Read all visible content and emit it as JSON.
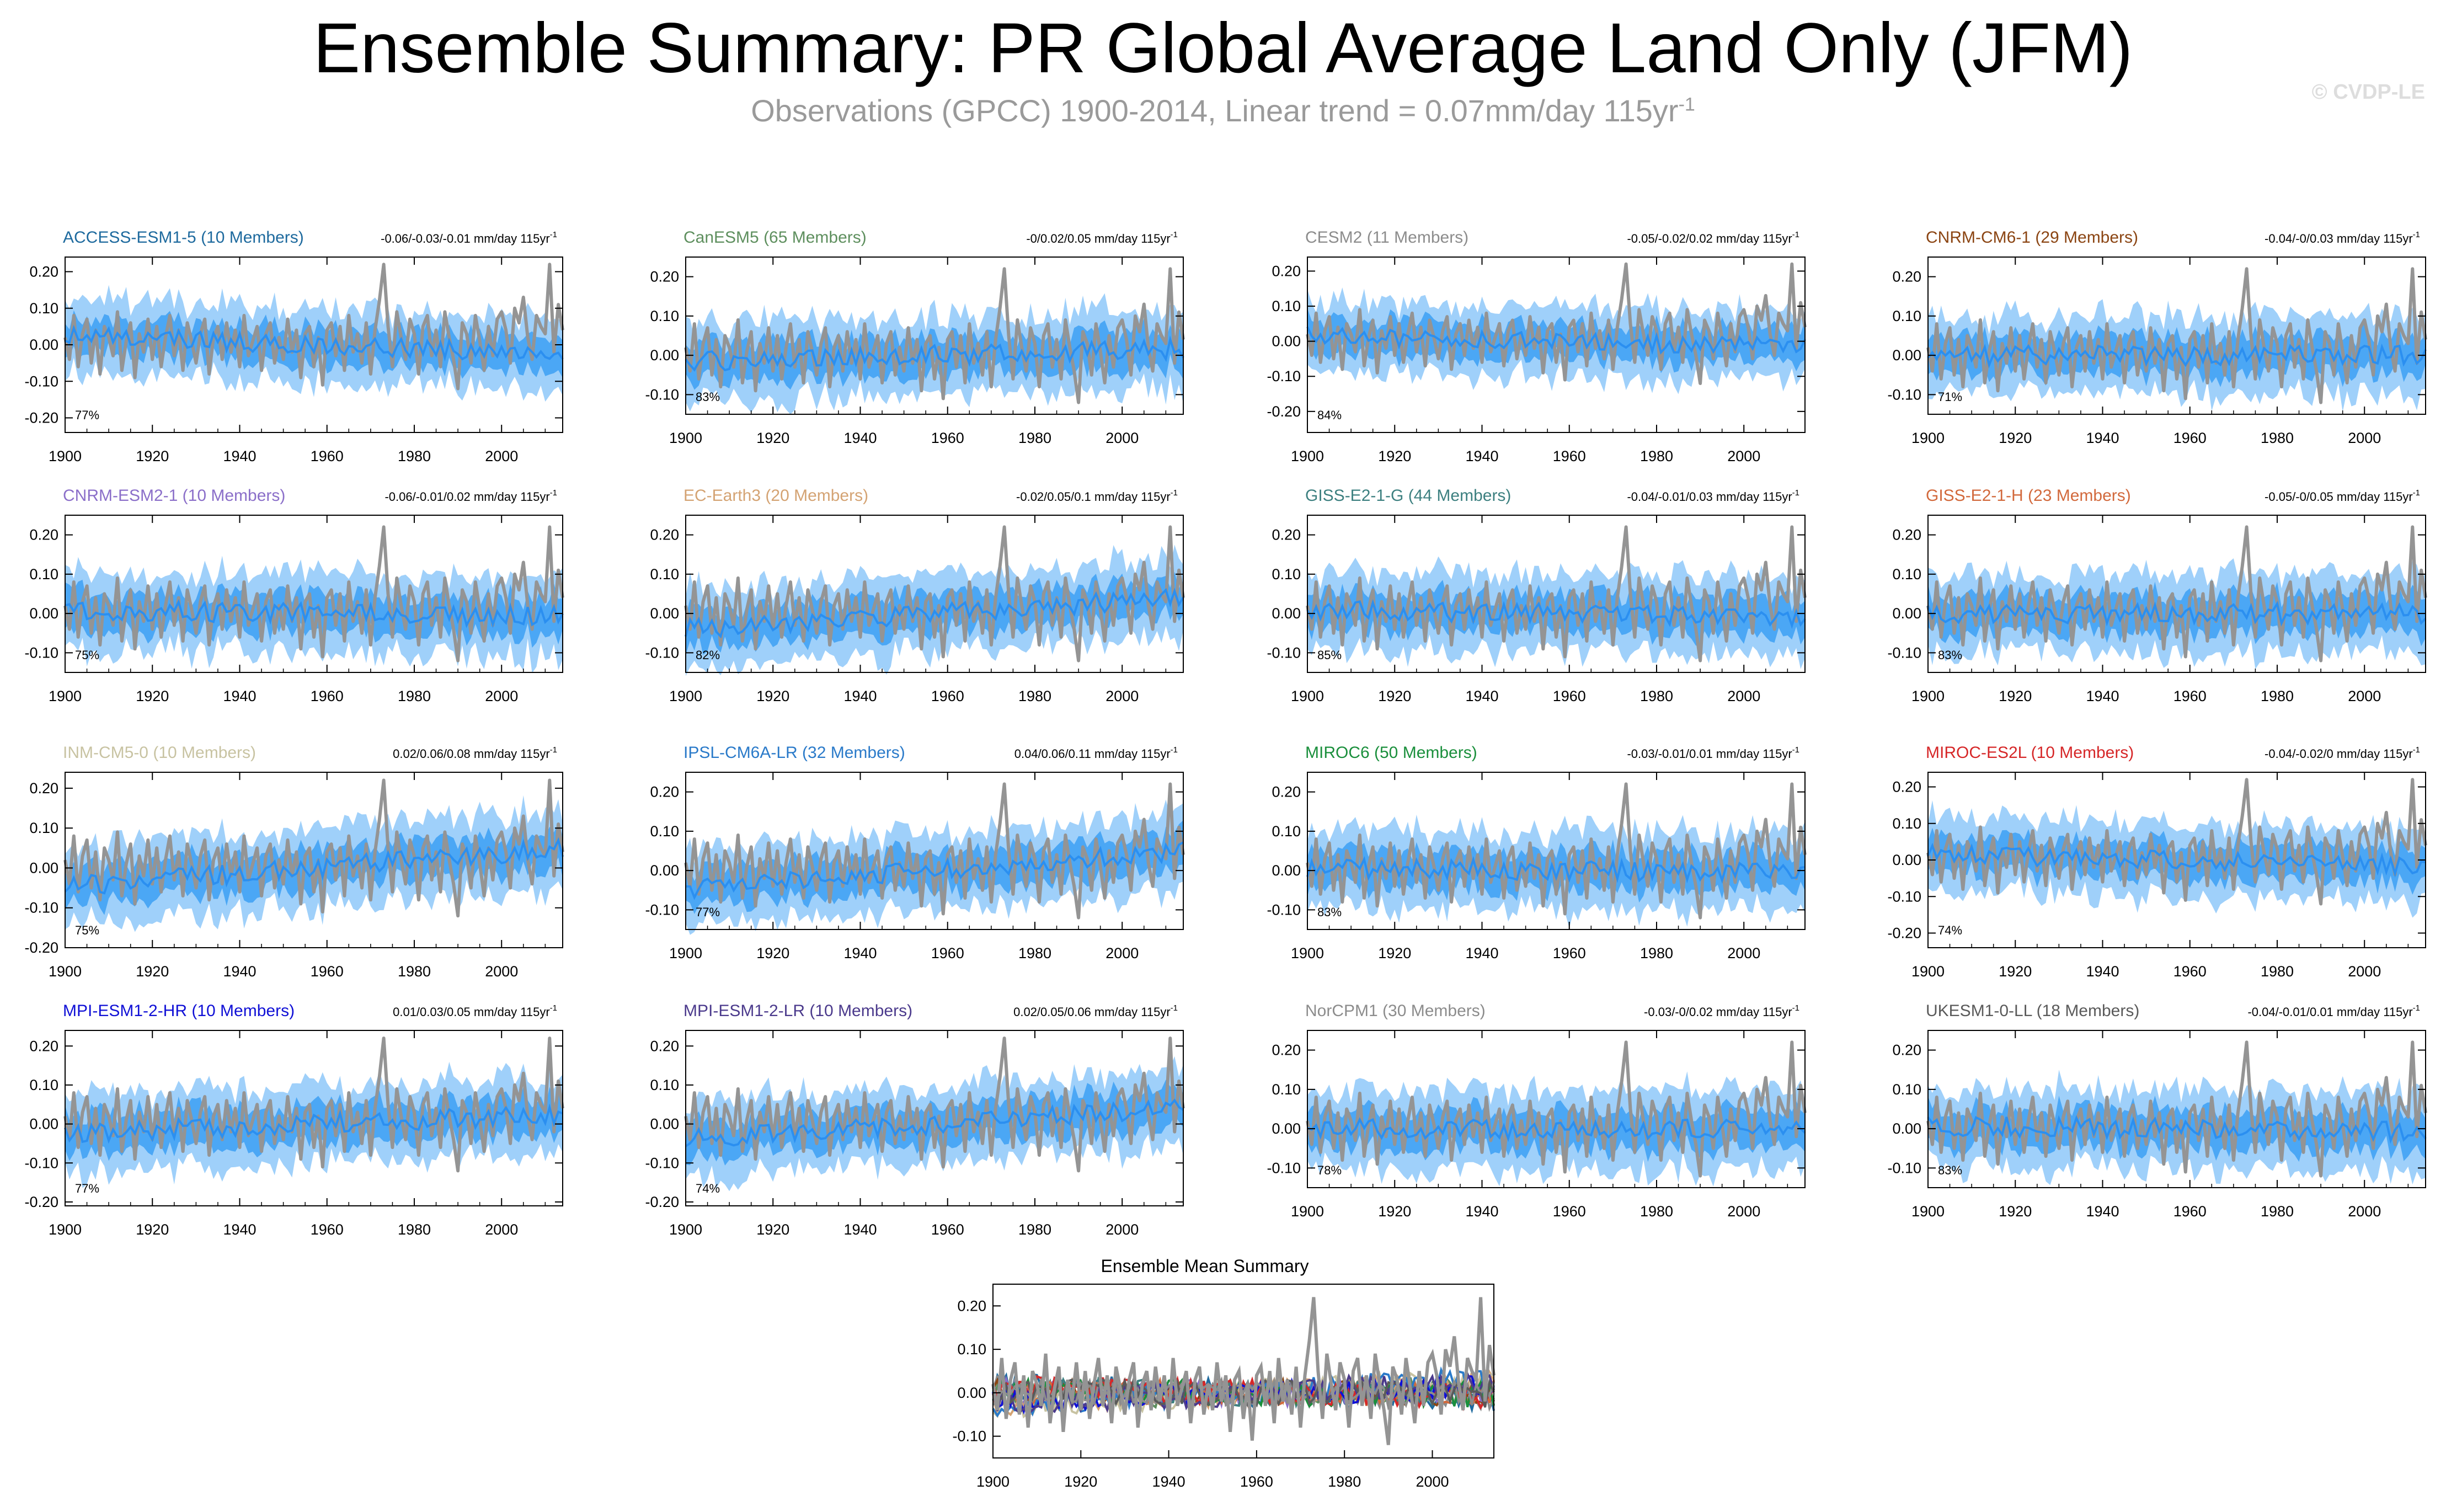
{
  "page": {
    "title": "Ensemble Summary: PR Global Average Land Only (JFM)",
    "subtitle_prefix": "Observations (GPCC) 1900-2014, Linear trend = 0.07mm/day 115yr",
    "subtitle_exponent": "-1",
    "watermark": "© CVDP-LE"
  },
  "colors": {
    "outer_band": "#9fd0fa",
    "inner_band": "#4ba7f5",
    "ensemble_mean": "#2b8ff0",
    "observations": "#949494"
  },
  "chart_data": [
    {
      "type": "area",
      "title": "ACCESS-ESM1-5 (10 Members)",
      "title_color": "#1e6a9e",
      "trend_text": "-0.06/-0.03/-0.01 mm/day 115yr",
      "trend_exp": "-1",
      "pct": "77%",
      "ylim": [
        -0.24,
        0.24
      ],
      "yticks": [
        0.2,
        0.1,
        0.0,
        -0.1,
        -0.2
      ],
      "ytick_labels": [
        "0.20",
        "0.10",
        "0.00",
        "-0.10",
        "-0.20"
      ],
      "xlim": [
        1900,
        2014
      ],
      "xticks": [
        1900,
        1920,
        1940,
        1960,
        1980,
        2000
      ],
      "mean_trend": -0.03,
      "obs_label": "GPCC"
    },
    {
      "type": "area",
      "title": "CanESM5 (65 Members)",
      "title_color": "#5e8f5e",
      "trend_text": "-0/0.02/0.05 mm/day 115yr",
      "trend_exp": "-1",
      "pct": "83%",
      "ylim": [
        -0.15,
        0.25
      ],
      "yticks": [
        0.2,
        0.1,
        0.0,
        -0.1
      ],
      "ytick_labels": [
        "0.20",
        "0.10",
        "0.00",
        "-0.10"
      ],
      "xlim": [
        1900,
        2014
      ],
      "xticks": [
        1900,
        1920,
        1940,
        1960,
        1980,
        2000
      ],
      "mean_trend": 0.02,
      "obs_label": "GPCC"
    },
    {
      "type": "area",
      "title": "CESM2 (11 Members)",
      "title_color": "#8c8c8c",
      "trend_text": "-0.05/-0.02/0.02 mm/day 115yr",
      "trend_exp": "-1",
      "pct": "84%",
      "ylim": [
        -0.26,
        0.24
      ],
      "yticks": [
        0.2,
        0.1,
        0.0,
        -0.1,
        -0.2
      ],
      "ytick_labels": [
        "0.20",
        "0.10",
        "0.00",
        "-0.10",
        "-0.20"
      ],
      "xlim": [
        1900,
        2014
      ],
      "xticks": [
        1900,
        1920,
        1940,
        1960,
        1980,
        2000
      ],
      "mean_trend": -0.02,
      "obs_label": "GPCC"
    },
    {
      "type": "area",
      "title": "CNRM-CM6-1 (29 Members)",
      "title_color": "#8b4513",
      "trend_text": "-0.04/-0/0.03 mm/day 115yr",
      "trend_exp": "-1",
      "pct": "71%",
      "ylim": [
        -0.15,
        0.25
      ],
      "yticks": [
        0.2,
        0.1,
        0.0,
        -0.1
      ],
      "ytick_labels": [
        "0.20",
        "0.10",
        "0.00",
        "-0.10"
      ],
      "xlim": [
        1900,
        2014
      ],
      "xticks": [
        1900,
        1920,
        1940,
        1960,
        1980,
        2000
      ],
      "mean_trend": 0.0,
      "obs_label": "GPCC"
    },
    {
      "type": "area",
      "title": "CNRM-ESM2-1 (10 Members)",
      "title_color": "#8b6fc9",
      "trend_text": "-0.06/-0.01/0.02 mm/day 115yr",
      "trend_exp": "-1",
      "pct": "75%",
      "ylim": [
        -0.15,
        0.25
      ],
      "yticks": [
        0.2,
        0.1,
        0.0,
        -0.1
      ],
      "ytick_labels": [
        "0.20",
        "0.10",
        "0.00",
        "-0.10"
      ],
      "xlim": [
        1900,
        2014
      ],
      "xticks": [
        1900,
        1920,
        1940,
        1960,
        1980,
        2000
      ],
      "mean_trend": -0.01,
      "obs_label": "GPCC"
    },
    {
      "type": "area",
      "title": "EC-Earth3 (20 Members)",
      "title_color": "#d4a373",
      "trend_text": "-0.02/0.05/0.1 mm/day 115yr",
      "trend_exp": "-1",
      "pct": "82%",
      "ylim": [
        -0.15,
        0.25
      ],
      "yticks": [
        0.2,
        0.1,
        0.0,
        -0.1
      ],
      "ytick_labels": [
        "0.20",
        "0.10",
        "0.00",
        "-0.10"
      ],
      "xlim": [
        1900,
        2014
      ],
      "xticks": [
        1900,
        1920,
        1940,
        1960,
        1980,
        2000
      ],
      "mean_trend": 0.05,
      "obs_label": "GPCC"
    },
    {
      "type": "area",
      "title": "GISS-E2-1-G (44 Members)",
      "title_color": "#3d8080",
      "trend_text": "-0.04/-0.01/0.03 mm/day 115yr",
      "trend_exp": "-1",
      "pct": "85%",
      "ylim": [
        -0.15,
        0.25
      ],
      "yticks": [
        0.2,
        0.1,
        0.0,
        -0.1
      ],
      "ytick_labels": [
        "0.20",
        "0.10",
        "0.00",
        "-0.10"
      ],
      "xlim": [
        1900,
        2014
      ],
      "xticks": [
        1900,
        1920,
        1940,
        1960,
        1980,
        2000
      ],
      "mean_trend": -0.01,
      "obs_label": "GPCC"
    },
    {
      "type": "area",
      "title": "GISS-E2-1-H (23 Members)",
      "title_color": "#d2693c",
      "trend_text": "-0.05/-0/0.05 mm/day 115yr",
      "trend_exp": "-1",
      "pct": "83%",
      "ylim": [
        -0.15,
        0.25
      ],
      "yticks": [
        0.2,
        0.1,
        0.0,
        -0.1
      ],
      "ytick_labels": [
        "0.20",
        "0.10",
        "0.00",
        "-0.10"
      ],
      "xlim": [
        1900,
        2014
      ],
      "xticks": [
        1900,
        1920,
        1940,
        1960,
        1980,
        2000
      ],
      "mean_trend": 0.0,
      "obs_label": "GPCC"
    },
    {
      "type": "area",
      "title": "INM-CM5-0 (10 Members)",
      "title_color": "#c8c3a2",
      "trend_text": "0.02/0.06/0.08 mm/day 115yr",
      "trend_exp": "-1",
      "pct": "75%",
      "ylim": [
        -0.2,
        0.24
      ],
      "yticks": [
        0.2,
        0.1,
        0.0,
        -0.1,
        -0.2
      ],
      "ytick_labels": [
        "0.20",
        "0.10",
        "0.00",
        "-0.10",
        "-0.20"
      ],
      "xlim": [
        1900,
        2014
      ],
      "xticks": [
        1900,
        1920,
        1940,
        1960,
        1980,
        2000
      ],
      "mean_trend": 0.06,
      "obs_label": "GPCC"
    },
    {
      "type": "area",
      "title": "IPSL-CM6A-LR (32 Members)",
      "title_color": "#2a7ac9",
      "trend_text": "0.04/0.06/0.11 mm/day 115yr",
      "trend_exp": "-1",
      "pct": "77%",
      "ylim": [
        -0.15,
        0.25
      ],
      "yticks": [
        0.2,
        0.1,
        0.0,
        -0.1
      ],
      "ytick_labels": [
        "0.20",
        "0.10",
        "0.00",
        "-0.10"
      ],
      "xlim": [
        1900,
        2014
      ],
      "xticks": [
        1900,
        1920,
        1940,
        1960,
        1980,
        2000
      ],
      "mean_trend": 0.06,
      "obs_label": "GPCC"
    },
    {
      "type": "area",
      "title": "MIROC6 (50 Members)",
      "title_color": "#1a8f3c",
      "trend_text": "-0.03/-0.01/0.01 mm/day 115yr",
      "trend_exp": "-1",
      "pct": "83%",
      "ylim": [
        -0.15,
        0.25
      ],
      "yticks": [
        0.2,
        0.1,
        0.0,
        -0.1
      ],
      "ytick_labels": [
        "0.20",
        "0.10",
        "0.00",
        "-0.10"
      ],
      "xlim": [
        1900,
        2014
      ],
      "xticks": [
        1900,
        1920,
        1940,
        1960,
        1980,
        2000
      ],
      "mean_trend": -0.01,
      "obs_label": "GPCC"
    },
    {
      "type": "area",
      "title": "MIROC-ES2L (10 Members)",
      "title_color": "#d62728",
      "trend_text": "-0.04/-0.02/0 mm/day 115yr",
      "trend_exp": "-1",
      "pct": "74%",
      "ylim": [
        -0.24,
        0.24
      ],
      "yticks": [
        0.2,
        0.1,
        0.0,
        -0.1,
        -0.2
      ],
      "ytick_labels": [
        "0.20",
        "0.10",
        "0.00",
        "-0.10",
        "-0.20"
      ],
      "xlim": [
        1900,
        2014
      ],
      "xticks": [
        1900,
        1920,
        1940,
        1960,
        1980,
        2000
      ],
      "mean_trend": -0.02,
      "obs_label": "GPCC"
    },
    {
      "type": "area",
      "title": "MPI-ESM1-2-HR (10 Members)",
      "title_color": "#1010d6",
      "trend_text": "0.01/0.03/0.05 mm/day 115yr",
      "trend_exp": "-1",
      "pct": "77%",
      "ylim": [
        -0.21,
        0.24
      ],
      "yticks": [
        0.2,
        0.1,
        0.0,
        -0.1,
        -0.2
      ],
      "ytick_labels": [
        "0.20",
        "0.10",
        "0.00",
        "-0.10",
        "-0.20"
      ],
      "xlim": [
        1900,
        2014
      ],
      "xticks": [
        1900,
        1920,
        1940,
        1960,
        1980,
        2000
      ],
      "mean_trend": 0.03,
      "obs_label": "GPCC"
    },
    {
      "type": "area",
      "title": "MPI-ESM1-2-LR (10 Members)",
      "title_color": "#4b3a8c",
      "trend_text": "0.02/0.05/0.06 mm/day 115yr",
      "trend_exp": "-1",
      "pct": "74%",
      "ylim": [
        -0.21,
        0.24
      ],
      "yticks": [
        0.2,
        0.1,
        0.0,
        -0.1,
        -0.2
      ],
      "ytick_labels": [
        "0.20",
        "0.10",
        "0.00",
        "-0.10",
        "-0.20"
      ],
      "xlim": [
        1900,
        2014
      ],
      "xticks": [
        1900,
        1920,
        1940,
        1960,
        1980,
        2000
      ],
      "mean_trend": 0.05,
      "obs_label": "GPCC"
    },
    {
      "type": "area",
      "title": "NorCPM1 (30 Members)",
      "title_color": "#8c8c8c",
      "trend_text": "-0.03/-0/0.02 mm/day 115yr",
      "trend_exp": "-1",
      "pct": "78%",
      "ylim": [
        -0.15,
        0.25
      ],
      "yticks": [
        0.2,
        0.1,
        0.0,
        -0.1
      ],
      "ytick_labels": [
        "0.20",
        "0.10",
        "0.00",
        "-0.10"
      ],
      "xlim": [
        1900,
        2014
      ],
      "xticks": [
        1900,
        1920,
        1940,
        1960,
        1980,
        2000
      ],
      "mean_trend": 0.0,
      "obs_label": "GPCC"
    },
    {
      "type": "area",
      "title": "UKESM1-0-LL (18 Members)",
      "title_color": "#5a5a5a",
      "trend_text": "-0.04/-0.01/0.01 mm/day 115yr",
      "trend_exp": "-1",
      "pct": "83%",
      "ylim": [
        -0.15,
        0.25
      ],
      "yticks": [
        0.2,
        0.1,
        0.0,
        -0.1
      ],
      "ytick_labels": [
        "0.20",
        "0.10",
        "0.00",
        "-0.10"
      ],
      "xlim": [
        1900,
        2014
      ],
      "xticks": [
        1900,
        1920,
        1940,
        1960,
        1980,
        2000
      ],
      "mean_trend": -0.01,
      "obs_label": "GPCC"
    },
    {
      "type": "line",
      "title": "Ensemble Mean Summary",
      "ylim": [
        -0.15,
        0.25
      ],
      "yticks": [
        0.2,
        0.1,
        0.0,
        -0.1
      ],
      "ytick_labels": [
        "0.20",
        "0.10",
        "0.00",
        "-0.10"
      ],
      "xlim": [
        1900,
        2014
      ],
      "xticks": [
        1900,
        1920,
        1940,
        1960,
        1980,
        2000
      ],
      "series_colors": [
        "#1e6a9e",
        "#5e8f5e",
        "#8c8c8c",
        "#8b4513",
        "#8b6fc9",
        "#d4a373",
        "#3d8080",
        "#d2693c",
        "#c8c3a2",
        "#2a7ac9",
        "#1a8f3c",
        "#d62728",
        "#1010d6",
        "#4b3a8c",
        "#8c8c8c",
        "#5a5a5a"
      ]
    }
  ],
  "observations": {
    "label": "GPCC",
    "years": [
      1900,
      2014
    ],
    "values": [
      0.02,
      -0.04,
      0.08,
      -0.06,
      0.03,
      0.07,
      -0.05,
      0.04,
      -0.08,
      0.05,
      0.02,
      -0.03,
      0.09,
      -0.07,
      0.01,
      0.06,
      -0.09,
      0.03,
      -0.02,
      0.07,
      -0.04,
      0.05,
      -0.06,
      0.02,
      0.08,
      -0.03,
      0.04,
      -0.07,
      0.06,
      0.01,
      -0.05,
      0.03,
      0.07,
      -0.08,
      0.02,
      0.05,
      -0.04,
      0.06,
      -0.02,
      0.04,
      -0.06,
      0.08,
      -0.03,
      0.01,
      0.05,
      -0.07,
      0.03,
      0.06,
      -0.05,
      0.02,
      -0.04,
      0.07,
      -0.02,
      0.04,
      -0.09,
      0.03,
      0.05,
      -0.06,
      0.02,
      -0.11,
      0.04,
      0.06,
      -0.03,
      0.05,
      -0.07,
      0.08,
      -0.02,
      0.03,
      -0.05,
      0.06,
      -0.08,
      0.04,
      0.12,
      0.22,
      0.05,
      -0.06,
      0.09,
      0.02,
      -0.04,
      0.07,
      0.03,
      -0.08,
      0.05,
      0.08,
      -0.03,
      0.04,
      -0.06,
      0.09,
      0.02,
      -0.04,
      -0.12,
      0.06,
      0.03,
      -0.05,
      0.08,
      0.01,
      -0.07,
      0.05,
      -0.03,
      0.07,
      0.09,
      0.04,
      -0.05,
      0.1,
      0.06,
      0.13,
      0.02,
      -0.04,
      0.08,
      0.05,
      0.03,
      0.22,
      -0.02,
      0.11,
      0.04
    ]
  }
}
